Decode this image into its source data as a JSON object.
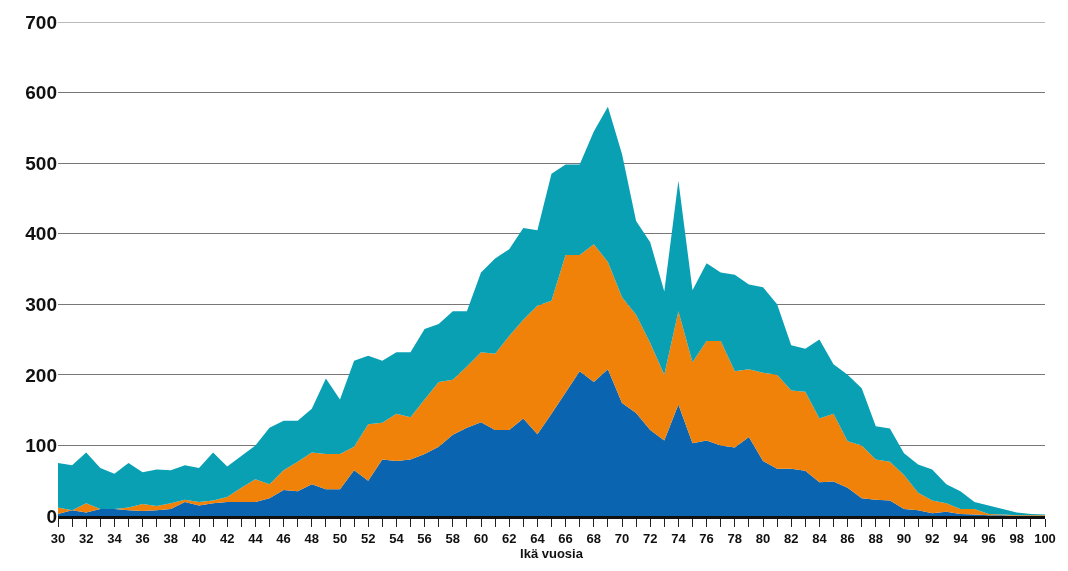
{
  "chart_data": {
    "type": "area",
    "stacked": true,
    "xlabel": "Ikä vuosia",
    "x": [
      30,
      31,
      32,
      33,
      34,
      35,
      36,
      37,
      38,
      39,
      40,
      41,
      42,
      43,
      44,
      45,
      46,
      47,
      48,
      49,
      50,
      51,
      52,
      53,
      54,
      55,
      56,
      57,
      58,
      59,
      60,
      61,
      62,
      63,
      64,
      65,
      66,
      67,
      68,
      69,
      70,
      71,
      72,
      73,
      74,
      75,
      76,
      77,
      78,
      79,
      80,
      81,
      82,
      83,
      84,
      85,
      86,
      87,
      88,
      89,
      90,
      91,
      92,
      93,
      94,
      95,
      96,
      97,
      98,
      99,
      100
    ],
    "series": [
      {
        "color": "#0a64b0",
        "values": [
          3,
          8,
          5,
          10,
          10,
          8,
          7,
          8,
          10,
          20,
          15,
          18,
          20,
          20,
          20,
          25,
          37,
          35,
          45,
          38,
          38,
          65,
          50,
          80,
          78,
          80,
          88,
          98,
          115,
          125,
          133,
          122,
          122,
          138,
          116,
          145,
          175,
          205,
          190,
          208,
          160,
          146,
          122,
          107,
          158,
          103,
          107,
          100,
          97,
          112,
          78,
          67,
          67,
          64,
          48,
          49,
          40,
          25,
          23,
          22,
          10,
          8,
          4,
          6,
          3,
          2,
          1,
          1,
          0,
          0,
          0
        ]
      },
      {
        "color": "#f0820a",
        "values": [
          9,
          0,
          13,
          0,
          0,
          4,
          10,
          6,
          8,
          3,
          5,
          4,
          7,
          20,
          32,
          20,
          28,
          42,
          45,
          50,
          50,
          33,
          80,
          52,
          67,
          60,
          77,
          92,
          78,
          87,
          99,
          108,
          133,
          140,
          182,
          160,
          195,
          165,
          195,
          152,
          150,
          139,
          123,
          93,
          132,
          115,
          141,
          148,
          108,
          96,
          125,
          133,
          111,
          112,
          90,
          96,
          66,
          75,
          57,
          55,
          48,
          25,
          18,
          12,
          7,
          8,
          2,
          1,
          1,
          1,
          1
        ]
      },
      {
        "color": "#0aa0b4",
        "values": [
          63,
          64,
          72,
          58,
          50,
          63,
          45,
          52,
          47,
          49,
          48,
          68,
          43,
          45,
          48,
          80,
          70,
          58,
          62,
          107,
          77,
          122,
          97,
          88,
          87,
          92,
          100,
          82,
          97,
          78,
          113,
          135,
          123,
          130,
          107,
          180,
          128,
          128,
          160,
          220,
          203,
          133,
          143,
          118,
          185,
          102,
          110,
          97,
          137,
          120,
          121,
          100,
          64,
          61,
          112,
          70,
          94,
          81,
          47,
          47,
          31,
          40,
          44,
          27,
          25,
          10,
          12,
          8,
          4,
          2,
          1
        ]
      }
    ],
    "xlim": [
      30,
      100
    ],
    "xticks": [
      30,
      {
        "value": 31,
        "label": null
      },
      32,
      {
        "value": 33,
        "label": null
      },
      34,
      {
        "value": 35,
        "label": null
      },
      36,
      {
        "value": 37,
        "label": null
      },
      38,
      {
        "value": 39,
        "label": null
      },
      40,
      {
        "value": 41,
        "label": null
      },
      42,
      {
        "value": 43,
        "label": null
      },
      44,
      {
        "value": 45,
        "label": null
      },
      46,
      {
        "value": 47,
        "label": null
      },
      48,
      {
        "value": 49,
        "label": null
      },
      50,
      {
        "value": 51,
        "label": null
      },
      52,
      {
        "value": 53,
        "label": null
      },
      54,
      {
        "value": 55,
        "label": null
      },
      56,
      {
        "value": 57,
        "label": null
      },
      58,
      {
        "value": 59,
        "label": null
      },
      60,
      {
        "value": 61,
        "label": null
      },
      62,
      {
        "value": 63,
        "label": null
      },
      64,
      {
        "value": 65,
        "label": null
      },
      66,
      {
        "value": 67,
        "label": null
      },
      68,
      {
        "value": 69,
        "label": null
      },
      70,
      {
        "value": 71,
        "label": null
      },
      72,
      {
        "value": 73,
        "label": null
      },
      74,
      {
        "value": 75,
        "label": null
      },
      76,
      {
        "value": 77,
        "label": null
      },
      78,
      {
        "value": 79,
        "label": null
      },
      80,
      {
        "value": 81,
        "label": null
      },
      82,
      {
        "value": 83,
        "label": null
      },
      84,
      {
        "value": 85,
        "label": null
      },
      86,
      {
        "value": 87,
        "label": null
      },
      88,
      {
        "value": 89,
        "label": null
      },
      90,
      {
        "value": 91,
        "label": null
      },
      92,
      {
        "value": 93,
        "label": null
      },
      94,
      {
        "value": 95,
        "label": null
      },
      96,
      {
        "value": 97,
        "label": null
      },
      98,
      {
        "value": 99,
        "label": null
      },
      100
    ],
    "ylim": [
      0,
      700
    ],
    "yticks": [
      0,
      100,
      200,
      300,
      400,
      500,
      600,
      700
    ],
    "grid": "y"
  }
}
